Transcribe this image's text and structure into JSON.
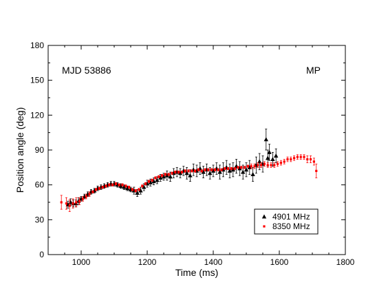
{
  "chart_data": {
    "type": "scatter",
    "xlabel": "Time (ms)",
    "ylabel": "Position angle (deg)",
    "xlim": [
      900,
      1800
    ],
    "ylim": [
      0,
      180
    ],
    "xticks": [
      1000,
      1200,
      1400,
      1600,
      1800
    ],
    "yticks": [
      0,
      30,
      60,
      90,
      120,
      150,
      180
    ],
    "grid": false,
    "legend_position": "bottom-right",
    "annotations": {
      "top_left": "MJD 53886",
      "top_right": "MP"
    },
    "series": [
      {
        "name": "4901 MHz",
        "marker": "triangle",
        "color": "#000000",
        "points": [
          [
            960,
            43,
            3
          ],
          [
            968,
            45,
            3
          ],
          [
            976,
            44,
            3
          ],
          [
            984,
            44,
            3
          ],
          [
            992,
            46,
            3
          ],
          [
            1000,
            48,
            2
          ],
          [
            1010,
            50,
            2
          ],
          [
            1020,
            52,
            2
          ],
          [
            1030,
            54,
            2
          ],
          [
            1040,
            55,
            2
          ],
          [
            1050,
            57,
            2
          ],
          [
            1060,
            58,
            2
          ],
          [
            1070,
            59,
            2
          ],
          [
            1080,
            60,
            2
          ],
          [
            1090,
            61,
            2
          ],
          [
            1100,
            61,
            2
          ],
          [
            1110,
            60,
            2
          ],
          [
            1120,
            59,
            2
          ],
          [
            1130,
            58,
            2
          ],
          [
            1140,
            57,
            2
          ],
          [
            1150,
            56,
            2
          ],
          [
            1160,
            55,
            3
          ],
          [
            1170,
            53,
            3
          ],
          [
            1180,
            55,
            3
          ],
          [
            1190,
            58,
            3
          ],
          [
            1200,
            61,
            3
          ],
          [
            1210,
            62,
            3
          ],
          [
            1220,
            63,
            3
          ],
          [
            1230,
            64,
            3
          ],
          [
            1240,
            66,
            3
          ],
          [
            1250,
            67,
            3
          ],
          [
            1260,
            68,
            4
          ],
          [
            1270,
            67,
            4
          ],
          [
            1280,
            70,
            4
          ],
          [
            1290,
            71,
            4
          ],
          [
            1300,
            70,
            4
          ],
          [
            1310,
            72,
            4
          ],
          [
            1320,
            70,
            5
          ],
          [
            1330,
            68,
            5
          ],
          [
            1340,
            73,
            5
          ],
          [
            1350,
            72,
            5
          ],
          [
            1360,
            74,
            5
          ],
          [
            1370,
            71,
            5
          ],
          [
            1380,
            73,
            5
          ],
          [
            1390,
            70,
            5
          ],
          [
            1400,
            72,
            5
          ],
          [
            1410,
            74,
            5
          ],
          [
            1420,
            71,
            6
          ],
          [
            1430,
            73,
            6
          ],
          [
            1440,
            75,
            6
          ],
          [
            1450,
            72,
            6
          ],
          [
            1460,
            73,
            6
          ],
          [
            1470,
            76,
            6
          ],
          [
            1480,
            74,
            6
          ],
          [
            1490,
            71,
            6
          ],
          [
            1500,
            73,
            6
          ],
          [
            1510,
            75,
            6
          ],
          [
            1520,
            69,
            6
          ],
          [
            1530,
            77,
            7
          ],
          [
            1540,
            80,
            7
          ],
          [
            1550,
            78,
            7
          ],
          [
            1560,
            99,
            9
          ],
          [
            1565,
            83,
            7
          ],
          [
            1570,
            88,
            7
          ],
          [
            1580,
            82,
            6
          ],
          [
            1590,
            85,
            6
          ]
        ]
      },
      {
        "name": "8350 MHz",
        "marker": "square",
        "color": "#ff0000",
        "points": [
          [
            940,
            45,
            6
          ],
          [
            955,
            44,
            5
          ],
          [
            965,
            42,
            5
          ],
          [
            975,
            44,
            4
          ],
          [
            985,
            45,
            4
          ],
          [
            995,
            46,
            3
          ],
          [
            1005,
            48,
            2
          ],
          [
            1015,
            50,
            2
          ],
          [
            1025,
            52,
            2
          ],
          [
            1035,
            54,
            1
          ],
          [
            1045,
            56,
            1
          ],
          [
            1055,
            57,
            1
          ],
          [
            1065,
            58,
            1
          ],
          [
            1075,
            59,
            1
          ],
          [
            1085,
            60,
            1
          ],
          [
            1095,
            60,
            1
          ],
          [
            1105,
            61,
            1
          ],
          [
            1115,
            60,
            1
          ],
          [
            1125,
            60,
            1
          ],
          [
            1135,
            59,
            1
          ],
          [
            1145,
            58,
            1
          ],
          [
            1155,
            56,
            1
          ],
          [
            1165,
            55,
            1
          ],
          [
            1175,
            56,
            1
          ],
          [
            1185,
            59,
            1
          ],
          [
            1195,
            61,
            1
          ],
          [
            1205,
            63,
            1
          ],
          [
            1215,
            64,
            1
          ],
          [
            1225,
            66,
            1
          ],
          [
            1235,
            67,
            1
          ],
          [
            1245,
            68,
            1
          ],
          [
            1255,
            69,
            1
          ],
          [
            1265,
            69,
            1
          ],
          [
            1275,
            70,
            1
          ],
          [
            1285,
            71,
            1
          ],
          [
            1295,
            71,
            1
          ],
          [
            1305,
            71,
            1
          ],
          [
            1315,
            72,
            1
          ],
          [
            1325,
            72,
            1
          ],
          [
            1335,
            72,
            1
          ],
          [
            1345,
            72,
            1
          ],
          [
            1355,
            73,
            1
          ],
          [
            1365,
            72,
            1
          ],
          [
            1375,
            73,
            1
          ],
          [
            1385,
            73,
            1
          ],
          [
            1395,
            73,
            1
          ],
          [
            1405,
            73,
            1
          ],
          [
            1415,
            73,
            1
          ],
          [
            1425,
            73,
            1
          ],
          [
            1435,
            74,
            1
          ],
          [
            1445,
            74,
            1
          ],
          [
            1455,
            74,
            1
          ],
          [
            1465,
            74,
            1
          ],
          [
            1475,
            75,
            1
          ],
          [
            1485,
            75,
            1
          ],
          [
            1495,
            75,
            1
          ],
          [
            1505,
            76,
            1
          ],
          [
            1515,
            76,
            2
          ],
          [
            1525,
            76,
            2
          ],
          [
            1535,
            77,
            2
          ],
          [
            1545,
            77,
            2
          ],
          [
            1555,
            78,
            2
          ],
          [
            1565,
            77,
            2
          ],
          [
            1575,
            77,
            2
          ],
          [
            1585,
            77,
            2
          ],
          [
            1595,
            78,
            2
          ],
          [
            1605,
            79,
            2
          ],
          [
            1615,
            80,
            2
          ],
          [
            1625,
            82,
            2
          ],
          [
            1635,
            82,
            2
          ],
          [
            1645,
            83,
            2
          ],
          [
            1655,
            84,
            2
          ],
          [
            1665,
            84,
            2
          ],
          [
            1675,
            84,
            2
          ],
          [
            1685,
            82,
            3
          ],
          [
            1695,
            82,
            3
          ],
          [
            1705,
            80,
            3
          ],
          [
            1712,
            72,
            6
          ]
        ]
      }
    ]
  }
}
